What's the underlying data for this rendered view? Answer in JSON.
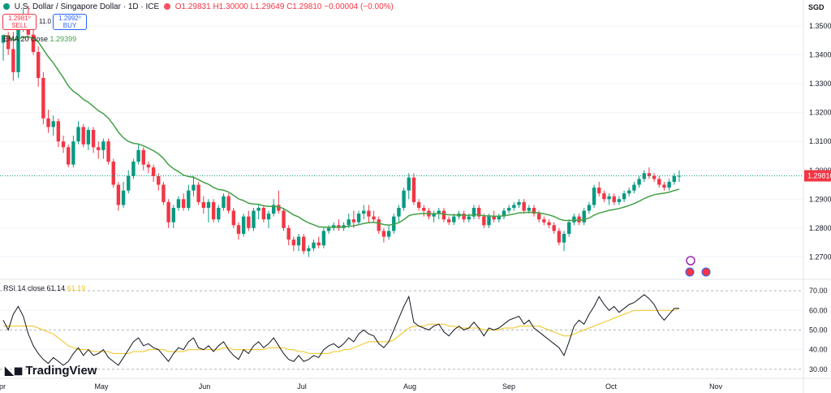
{
  "header": {
    "title": "U.S. Dollar / Singapore Dollar · 1D · ICE",
    "ohlc": "O1.29831 H1.30000 L1.29649 C1.29810 −0.00004 (−0.00%)",
    "sell_price": "1.2981⁰",
    "sell_label": "SELL",
    "spread": "11.0",
    "buy_price": "1.2992⁰",
    "buy_label": "BUY",
    "currency": "SGD"
  },
  "ema_legend": {
    "label": "EMA 20 close",
    "value": "1.29399"
  },
  "rsi_legend": {
    "label": "RSI 14 close",
    "value1": "61.14",
    "value2": "61.19"
  },
  "logo": {
    "mark_icon": "tradingview-mark-icon",
    "text": "TradingView"
  },
  "colors": {
    "up": "#089981",
    "down": "#f23645",
    "ema": "#43a047",
    "rsi": "#131722",
    "rsi_ma": "#f0c419"
  },
  "chart_data": {
    "type": "candlestick",
    "price_axis": {
      "ticks": [
        "1.35000",
        "1.34000",
        "1.33000",
        "1.32000",
        "1.31000",
        "1.30000",
        "1.29000",
        "1.28000",
        "1.27000"
      ],
      "range": [
        1.2628,
        1.359
      ]
    },
    "last_price": "1.29810",
    "x_labels": [
      "Apr",
      "May",
      "Jun",
      "Jul",
      "Aug",
      "Sep",
      "Oct",
      "Nov"
    ],
    "candles": [
      {
        "o": 1.3442,
        "h": 1.347,
        "l": 1.338,
        "c": 1.3468
      },
      {
        "o": 1.3468,
        "h": 1.348,
        "l": 1.34,
        "c": 1.342
      },
      {
        "o": 1.342,
        "h": 1.348,
        "l": 1.331,
        "c": 1.334
      },
      {
        "o": 1.334,
        "h": 1.35,
        "l": 1.332,
        "c": 1.349
      },
      {
        "o": 1.349,
        "h": 1.356,
        "l": 1.348,
        "c": 1.352
      },
      {
        "o": 1.352,
        "h": 1.357,
        "l": 1.345,
        "c": 1.347
      },
      {
        "o": 1.347,
        "h": 1.351,
        "l": 1.34,
        "c": 1.341
      },
      {
        "o": 1.341,
        "h": 1.343,
        "l": 1.329,
        "c": 1.332
      },
      {
        "o": 1.332,
        "h": 1.334,
        "l": 1.316,
        "c": 1.318
      },
      {
        "o": 1.318,
        "h": 1.321,
        "l": 1.313,
        "c": 1.315
      },
      {
        "o": 1.315,
        "h": 1.319,
        "l": 1.312,
        "c": 1.317
      },
      {
        "o": 1.317,
        "h": 1.318,
        "l": 1.308,
        "c": 1.31
      },
      {
        "o": 1.31,
        "h": 1.312,
        "l": 1.306,
        "c": 1.308
      },
      {
        "o": 1.308,
        "h": 1.309,
        "l": 1.301,
        "c": 1.302
      },
      {
        "o": 1.302,
        "h": 1.312,
        "l": 1.301,
        "c": 1.31
      },
      {
        "o": 1.31,
        "h": 1.317,
        "l": 1.309,
        "c": 1.315
      },
      {
        "o": 1.315,
        "h": 1.316,
        "l": 1.308,
        "c": 1.309
      },
      {
        "o": 1.309,
        "h": 1.315,
        "l": 1.307,
        "c": 1.314
      },
      {
        "o": 1.314,
        "h": 1.315,
        "l": 1.306,
        "c": 1.308
      },
      {
        "o": 1.308,
        "h": 1.31,
        "l": 1.304,
        "c": 1.307
      },
      {
        "o": 1.307,
        "h": 1.311,
        "l": 1.304,
        "c": 1.31
      },
      {
        "o": 1.31,
        "h": 1.311,
        "l": 1.302,
        "c": 1.303
      },
      {
        "o": 1.303,
        "h": 1.304,
        "l": 1.294,
        "c": 1.295
      },
      {
        "o": 1.295,
        "h": 1.296,
        "l": 1.286,
        "c": 1.288
      },
      {
        "o": 1.288,
        "h": 1.296,
        "l": 1.287,
        "c": 1.293
      },
      {
        "o": 1.293,
        "h": 1.3,
        "l": 1.292,
        "c": 1.298
      },
      {
        "o": 1.298,
        "h": 1.304,
        "l": 1.297,
        "c": 1.303
      },
      {
        "o": 1.303,
        "h": 1.309,
        "l": 1.302,
        "c": 1.307
      },
      {
        "o": 1.307,
        "h": 1.308,
        "l": 1.3,
        "c": 1.302
      },
      {
        "o": 1.302,
        "h": 1.303,
        "l": 1.299,
        "c": 1.301
      },
      {
        "o": 1.301,
        "h": 1.302,
        "l": 1.296,
        "c": 1.298
      },
      {
        "o": 1.298,
        "h": 1.299,
        "l": 1.293,
        "c": 1.295
      },
      {
        "o": 1.295,
        "h": 1.296,
        "l": 1.288,
        "c": 1.289
      },
      {
        "o": 1.289,
        "h": 1.29,
        "l": 1.28,
        "c": 1.282
      },
      {
        "o": 1.282,
        "h": 1.288,
        "l": 1.28,
        "c": 1.287
      },
      {
        "o": 1.287,
        "h": 1.291,
        "l": 1.286,
        "c": 1.29
      },
      {
        "o": 1.29,
        "h": 1.292,
        "l": 1.286,
        "c": 1.287
      },
      {
        "o": 1.287,
        "h": 1.295,
        "l": 1.286,
        "c": 1.293
      },
      {
        "o": 1.293,
        "h": 1.298,
        "l": 1.291,
        "c": 1.295
      },
      {
        "o": 1.295,
        "h": 1.296,
        "l": 1.288,
        "c": 1.289
      },
      {
        "o": 1.289,
        "h": 1.291,
        "l": 1.285,
        "c": 1.287
      },
      {
        "o": 1.287,
        "h": 1.29,
        "l": 1.282,
        "c": 1.289
      },
      {
        "o": 1.289,
        "h": 1.29,
        "l": 1.282,
        "c": 1.283
      },
      {
        "o": 1.283,
        "h": 1.288,
        "l": 1.282,
        "c": 1.287
      },
      {
        "o": 1.287,
        "h": 1.292,
        "l": 1.286,
        "c": 1.291
      },
      {
        "o": 1.291,
        "h": 1.292,
        "l": 1.285,
        "c": 1.286
      },
      {
        "o": 1.286,
        "h": 1.287,
        "l": 1.28,
        "c": 1.281
      },
      {
        "o": 1.281,
        "h": 1.282,
        "l": 1.276,
        "c": 1.278
      },
      {
        "o": 1.278,
        "h": 1.285,
        "l": 1.277,
        "c": 1.284
      },
      {
        "o": 1.284,
        "h": 1.286,
        "l": 1.279,
        "c": 1.28
      },
      {
        "o": 1.28,
        "h": 1.287,
        "l": 1.279,
        "c": 1.286
      },
      {
        "o": 1.286,
        "h": 1.288,
        "l": 1.283,
        "c": 1.287
      },
      {
        "o": 1.287,
        "h": 1.288,
        "l": 1.282,
        "c": 1.283
      },
      {
        "o": 1.283,
        "h": 1.286,
        "l": 1.28,
        "c": 1.285
      },
      {
        "o": 1.285,
        "h": 1.29,
        "l": 1.284,
        "c": 1.288
      },
      {
        "o": 1.288,
        "h": 1.293,
        "l": 1.285,
        "c": 1.286
      },
      {
        "o": 1.286,
        "h": 1.287,
        "l": 1.279,
        "c": 1.28
      },
      {
        "o": 1.28,
        "h": 1.281,
        "l": 1.274,
        "c": 1.276
      },
      {
        "o": 1.276,
        "h": 1.277,
        "l": 1.272,
        "c": 1.274
      },
      {
        "o": 1.274,
        "h": 1.278,
        "l": 1.272,
        "c": 1.277
      },
      {
        "o": 1.277,
        "h": 1.278,
        "l": 1.271,
        "c": 1.272
      },
      {
        "o": 1.272,
        "h": 1.274,
        "l": 1.27,
        "c": 1.273
      },
      {
        "o": 1.273,
        "h": 1.276,
        "l": 1.272,
        "c": 1.275
      },
      {
        "o": 1.275,
        "h": 1.277,
        "l": 1.273,
        "c": 1.274
      },
      {
        "o": 1.274,
        "h": 1.28,
        "l": 1.273,
        "c": 1.279
      },
      {
        "o": 1.279,
        "h": 1.281,
        "l": 1.278,
        "c": 1.28
      },
      {
        "o": 1.28,
        "h": 1.282,
        "l": 1.279,
        "c": 1.281
      },
      {
        "o": 1.281,
        "h": 1.283,
        "l": 1.279,
        "c": 1.28
      },
      {
        "o": 1.28,
        "h": 1.282,
        "l": 1.279,
        "c": 1.281
      },
      {
        "o": 1.281,
        "h": 1.285,
        "l": 1.28,
        "c": 1.283
      },
      {
        "o": 1.283,
        "h": 1.286,
        "l": 1.28,
        "c": 1.282
      },
      {
        "o": 1.282,
        "h": 1.286,
        "l": 1.281,
        "c": 1.285
      },
      {
        "o": 1.285,
        "h": 1.288,
        "l": 1.283,
        "c": 1.286
      },
      {
        "o": 1.286,
        "h": 1.288,
        "l": 1.282,
        "c": 1.284
      },
      {
        "o": 1.284,
        "h": 1.286,
        "l": 1.282,
        "c": 1.283
      },
      {
        "o": 1.283,
        "h": 1.284,
        "l": 1.278,
        "c": 1.279
      },
      {
        "o": 1.279,
        "h": 1.28,
        "l": 1.275,
        "c": 1.277
      },
      {
        "o": 1.277,
        "h": 1.281,
        "l": 1.276,
        "c": 1.279
      },
      {
        "o": 1.279,
        "h": 1.285,
        "l": 1.278,
        "c": 1.284
      },
      {
        "o": 1.284,
        "h": 1.288,
        "l": 1.282,
        "c": 1.287
      },
      {
        "o": 1.287,
        "h": 1.294,
        "l": 1.286,
        "c": 1.293
      },
      {
        "o": 1.293,
        "h": 1.299,
        "l": 1.29,
        "c": 1.2975
      },
      {
        "o": 1.2975,
        "h": 1.299,
        "l": 1.288,
        "c": 1.289
      },
      {
        "o": 1.289,
        "h": 1.29,
        "l": 1.286,
        "c": 1.287
      },
      {
        "o": 1.287,
        "h": 1.288,
        "l": 1.284,
        "c": 1.286
      },
      {
        "o": 1.286,
        "h": 1.287,
        "l": 1.283,
        "c": 1.284
      },
      {
        "o": 1.284,
        "h": 1.286,
        "l": 1.282,
        "c": 1.285
      },
      {
        "o": 1.285,
        "h": 1.287,
        "l": 1.283,
        "c": 1.286
      },
      {
        "o": 1.286,
        "h": 1.287,
        "l": 1.282,
        "c": 1.283
      },
      {
        "o": 1.283,
        "h": 1.284,
        "l": 1.281,
        "c": 1.282
      },
      {
        "o": 1.282,
        "h": 1.285,
        "l": 1.281,
        "c": 1.284
      },
      {
        "o": 1.284,
        "h": 1.286,
        "l": 1.283,
        "c": 1.285
      },
      {
        "o": 1.285,
        "h": 1.286,
        "l": 1.282,
        "c": 1.283
      },
      {
        "o": 1.283,
        "h": 1.285,
        "l": 1.282,
        "c": 1.284
      },
      {
        "o": 1.284,
        "h": 1.288,
        "l": 1.283,
        "c": 1.287
      },
      {
        "o": 1.287,
        "h": 1.288,
        "l": 1.283,
        "c": 1.284
      },
      {
        "o": 1.284,
        "h": 1.285,
        "l": 1.28,
        "c": 1.281
      },
      {
        "o": 1.281,
        "h": 1.285,
        "l": 1.28,
        "c": 1.284
      },
      {
        "o": 1.284,
        "h": 1.286,
        "l": 1.282,
        "c": 1.283
      },
      {
        "o": 1.283,
        "h": 1.285,
        "l": 1.282,
        "c": 1.284
      },
      {
        "o": 1.284,
        "h": 1.287,
        "l": 1.283,
        "c": 1.286
      },
      {
        "o": 1.286,
        "h": 1.288,
        "l": 1.285,
        "c": 1.287
      },
      {
        "o": 1.287,
        "h": 1.289,
        "l": 1.286,
        "c": 1.288
      },
      {
        "o": 1.288,
        "h": 1.29,
        "l": 1.287,
        "c": 1.289
      },
      {
        "o": 1.289,
        "h": 1.29,
        "l": 1.285,
        "c": 1.286
      },
      {
        "o": 1.286,
        "h": 1.288,
        "l": 1.285,
        "c": 1.287
      },
      {
        "o": 1.287,
        "h": 1.288,
        "l": 1.284,
        "c": 1.285
      },
      {
        "o": 1.285,
        "h": 1.286,
        "l": 1.282,
        "c": 1.283
      },
      {
        "o": 1.283,
        "h": 1.284,
        "l": 1.281,
        "c": 1.282
      },
      {
        "o": 1.282,
        "h": 1.283,
        "l": 1.28,
        "c": 1.281
      },
      {
        "o": 1.281,
        "h": 1.282,
        "l": 1.278,
        "c": 1.279
      },
      {
        "o": 1.279,
        "h": 1.28,
        "l": 1.274,
        "c": 1.275
      },
      {
        "o": 1.275,
        "h": 1.279,
        "l": 1.272,
        "c": 1.278
      },
      {
        "o": 1.278,
        "h": 1.283,
        "l": 1.277,
        "c": 1.282
      },
      {
        "o": 1.282,
        "h": 1.285,
        "l": 1.281,
        "c": 1.284
      },
      {
        "o": 1.284,
        "h": 1.285,
        "l": 1.281,
        "c": 1.282
      },
      {
        "o": 1.282,
        "h": 1.287,
        "l": 1.281,
        "c": 1.286
      },
      {
        "o": 1.286,
        "h": 1.289,
        "l": 1.285,
        "c": 1.288
      },
      {
        "o": 1.288,
        "h": 1.295,
        "l": 1.287,
        "c": 1.294
      },
      {
        "o": 1.294,
        "h": 1.296,
        "l": 1.291,
        "c": 1.292
      },
      {
        "o": 1.292,
        "h": 1.293,
        "l": 1.289,
        "c": 1.29
      },
      {
        "o": 1.29,
        "h": 1.292,
        "l": 1.288,
        "c": 1.291
      },
      {
        "o": 1.291,
        "h": 1.292,
        "l": 1.288,
        "c": 1.289
      },
      {
        "o": 1.289,
        "h": 1.291,
        "l": 1.288,
        "c": 1.29
      },
      {
        "o": 1.29,
        "h": 1.293,
        "l": 1.289,
        "c": 1.292
      },
      {
        "o": 1.292,
        "h": 1.294,
        "l": 1.291,
        "c": 1.293
      },
      {
        "o": 1.293,
        "h": 1.296,
        "l": 1.292,
        "c": 1.295
      },
      {
        "o": 1.295,
        "h": 1.298,
        "l": 1.294,
        "c": 1.297
      },
      {
        "o": 1.297,
        "h": 1.3,
        "l": 1.296,
        "c": 1.299
      },
      {
        "o": 1.299,
        "h": 1.301,
        "l": 1.297,
        "c": 1.298
      },
      {
        "o": 1.298,
        "h": 1.299,
        "l": 1.296,
        "c": 1.297
      },
      {
        "o": 1.297,
        "h": 1.298,
        "l": 1.294,
        "c": 1.295
      },
      {
        "o": 1.295,
        "h": 1.296,
        "l": 1.293,
        "c": 1.294
      },
      {
        "o": 1.294,
        "h": 1.297,
        "l": 1.293,
        "c": 1.296
      },
      {
        "o": 1.296,
        "h": 1.299,
        "l": 1.295,
        "c": 1.298
      },
      {
        "o": 1.298,
        "h": 1.3,
        "l": 1.296,
        "c": 1.2981
      }
    ],
    "ema_period": 20,
    "rsi_axis": {
      "ticks": [
        "70.00",
        "60.00",
        "50.00",
        "40.00",
        "30.00"
      ],
      "range": [
        27,
        75
      ]
    },
    "rsi": [
      55,
      50,
      58,
      62,
      57,
      48,
      42,
      38,
      35,
      33,
      36,
      34,
      32,
      34,
      38,
      41,
      37,
      40,
      37,
      38,
      40,
      36,
      34,
      32,
      36,
      40,
      44,
      46,
      42,
      43,
      41,
      40,
      37,
      34,
      38,
      41,
      40,
      44,
      46,
      41,
      40,
      42,
      39,
      42,
      44,
      40,
      37,
      35,
      40,
      38,
      42,
      44,
      41,
      43,
      46,
      42,
      38,
      35,
      34,
      37,
      34,
      35,
      37,
      36,
      40,
      42,
      43,
      41,
      43,
      46,
      44,
      48,
      50,
      48,
      47,
      43,
      41,
      44,
      50,
      56,
      62,
      67,
      54,
      52,
      51,
      50,
      52,
      53,
      49,
      47,
      50,
      52,
      50,
      51,
      54,
      51,
      47,
      51,
      50,
      51,
      53,
      55,
      56,
      57,
      53,
      55,
      51,
      49,
      47,
      45,
      43,
      41,
      37,
      44,
      52,
      55,
      53,
      58,
      62,
      67,
      63,
      60,
      62,
      59,
      61,
      63,
      64,
      66,
      68,
      66,
      63,
      58,
      55,
      58,
      61,
      61
    ],
    "rsi_ma": [
      52,
      52,
      52,
      52,
      52,
      52,
      52,
      51,
      50,
      49,
      48,
      46,
      44,
      42,
      41,
      40,
      40,
      40,
      39,
      39,
      39,
      39,
      38,
      38,
      38,
      38,
      39,
      39,
      39,
      40,
      40,
      40,
      40,
      39,
      39,
      39,
      39,
      40,
      40,
      40,
      40,
      40,
      40,
      40,
      41,
      41,
      40,
      40,
      40,
      40,
      40,
      40,
      40,
      41,
      41,
      41,
      41,
      40,
      40,
      39,
      39,
      38,
      38,
      38,
      38,
      38,
      39,
      39,
      40,
      40,
      41,
      42,
      43,
      44,
      44,
      44,
      44,
      44,
      45,
      47,
      49,
      51,
      52,
      52,
      52,
      53,
      53,
      53,
      53,
      52,
      52,
      51,
      51,
      51,
      51,
      51,
      50,
      50,
      50,
      50,
      51,
      51,
      51,
      52,
      52,
      52,
      52,
      52,
      51,
      50,
      49,
      48,
      47,
      47,
      48,
      49,
      50,
      51,
      52,
      53,
      54,
      55,
      56,
      57,
      58,
      59,
      60,
      60,
      60,
      60,
      60,
      60,
      60,
      60,
      60,
      61
    ]
  }
}
